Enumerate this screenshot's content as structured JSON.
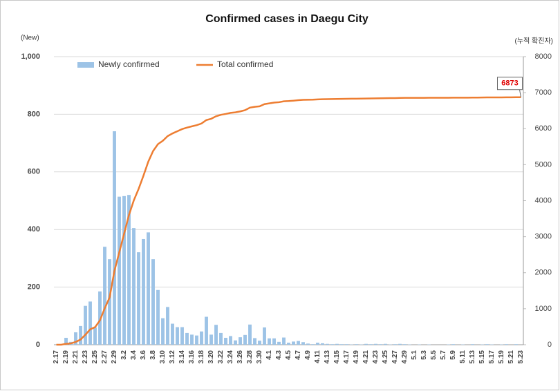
{
  "chart_data": {
    "type": "bar-line",
    "title": "Confirmed cases in Daegu City",
    "y_label": "(New)",
    "y2_label": "(누적 확진자)",
    "categories": [
      "2.17",
      null,
      "2.19",
      null,
      "2.21",
      null,
      "2.23",
      null,
      "2.25",
      null,
      "2.27",
      null,
      "2.29",
      null,
      "3.2",
      null,
      "3.4",
      null,
      "3.6",
      null,
      "3.8",
      null,
      "3.10",
      null,
      "3.12",
      null,
      "3.14",
      null,
      "3.16",
      null,
      "3.18",
      null,
      "3.20",
      null,
      "3.22",
      null,
      "3.24",
      null,
      "3.26",
      null,
      "3.28",
      null,
      "3.30",
      null,
      "4.1",
      null,
      "4.3",
      null,
      "4.5",
      null,
      "4.7",
      null,
      "4.9",
      null,
      "4.11",
      null,
      "4.13",
      null,
      "4.15",
      null,
      "4.17",
      null,
      "4.19",
      null,
      "4.21",
      null,
      "4.23",
      null,
      "4.25",
      null,
      "4.27",
      null,
      "4.29",
      null,
      "5.1",
      null,
      "5.3",
      null,
      "5.5",
      null,
      "5.7",
      null,
      "5.9",
      null,
      "5.11",
      null,
      "5.13",
      null,
      "5.15",
      null,
      "5.17",
      null,
      "5.19",
      null,
      "5.21",
      null,
      "5.23"
    ],
    "series": [
      {
        "name": "Newly confirmed",
        "type": "bar",
        "color": "#9dc3e6",
        "values": [
          0,
          1,
          24,
          10,
          43,
          65,
          135,
          150,
          60,
          185,
          340,
          297,
          741,
          514,
          516,
          520,
          405,
          321,
          367,
          390,
          297,
          190,
          92,
          131,
          73,
          61,
          61,
          41,
          35,
          32,
          46,
          97,
          35,
          69,
          41,
          24,
          30,
          15,
          26,
          34,
          70,
          23,
          14,
          60,
          22,
          22,
          10,
          25,
          7,
          11,
          13,
          9,
          4,
          2,
          7,
          5,
          3,
          2,
          3,
          2,
          2,
          1,
          2,
          1,
          3,
          2,
          3,
          2,
          3,
          1,
          2,
          3,
          2,
          1,
          0,
          1,
          0,
          1,
          0,
          0,
          0,
          1,
          2,
          0,
          1,
          0,
          2,
          0,
          1,
          2,
          1,
          0,
          1,
          2,
          0,
          2,
          0
        ]
      },
      {
        "name": "Total confirmed",
        "type": "line",
        "axis": "y2",
        "color": "#ed7d31",
        "values": [
          0,
          1,
          25,
          35,
          78,
          143,
          278,
          428,
          488,
          673,
          1013,
          1310,
          2051,
          2565,
          3081,
          3601,
          4006,
          4327,
          4694,
          5084,
          5381,
          5571,
          5663,
          5794,
          5867,
          5928,
          5989,
          6030,
          6065,
          6097,
          6143,
          6240,
          6275,
          6344,
          6385,
          6409,
          6439,
          6454,
          6480,
          6514,
          6584,
          6607,
          6621,
          6681,
          6703,
          6725,
          6735,
          6760,
          6767,
          6778,
          6791,
          6800,
          6804,
          6806,
          6813,
          6818,
          6821,
          6823,
          6826,
          6828,
          6830,
          6831,
          6833,
          6834,
          6837,
          6839,
          6842,
          6844,
          6847,
          6848,
          6850,
          6853,
          6855,
          6856,
          6856,
          6857,
          6857,
          6858,
          6858,
          6858,
          6858,
          6859,
          6861,
          6861,
          6862,
          6862,
          6864,
          6864,
          6865,
          6867,
          6868,
          6868,
          6869,
          6871,
          6871,
          6873,
          6873
        ]
      }
    ],
    "ylim": [
      0,
      1000
    ],
    "yticks": [
      0,
      200,
      400,
      600,
      800,
      {
        "value": 1000,
        "label": "1,000"
      }
    ],
    "y2lim": [
      0,
      8000
    ],
    "y2ticks": [
      0,
      1000,
      2000,
      3000,
      4000,
      5000,
      6000,
      7000,
      8000
    ],
    "grid": true,
    "legend": "top-left"
  }
}
